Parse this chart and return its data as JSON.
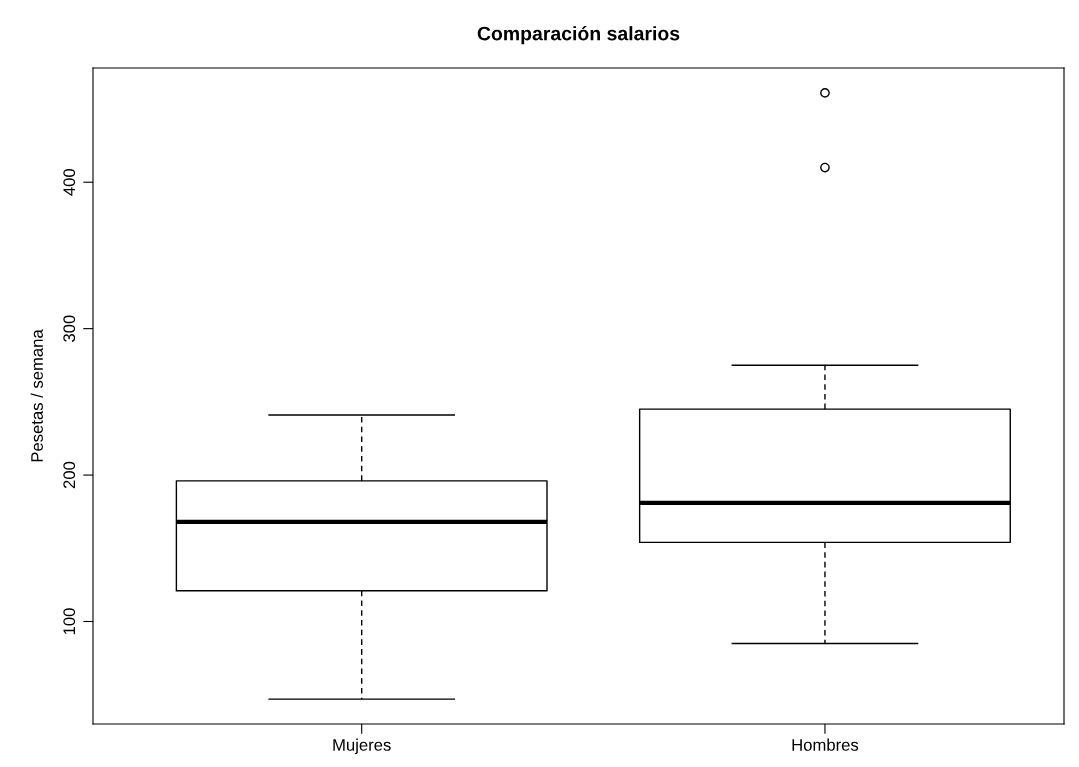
{
  "chart_data": {
    "type": "box",
    "title": "Comparación salarios",
    "ylabel": "Pesetas / semana",
    "categories": [
      "Mujeres",
      "Hombres"
    ],
    "boxes": [
      {
        "low": 47,
        "q1": 121,
        "median": 168,
        "q3": 196,
        "high": 241
      },
      {
        "low": 85,
        "q1": 154,
        "median": 181,
        "q3": 245,
        "high": 275,
        "outliers": [
          410,
          461
        ]
      }
    ],
    "ylim": [
      30,
      478
    ],
    "yticks": [
      100,
      200,
      300,
      400
    ],
    "grid": false,
    "legend": false
  }
}
